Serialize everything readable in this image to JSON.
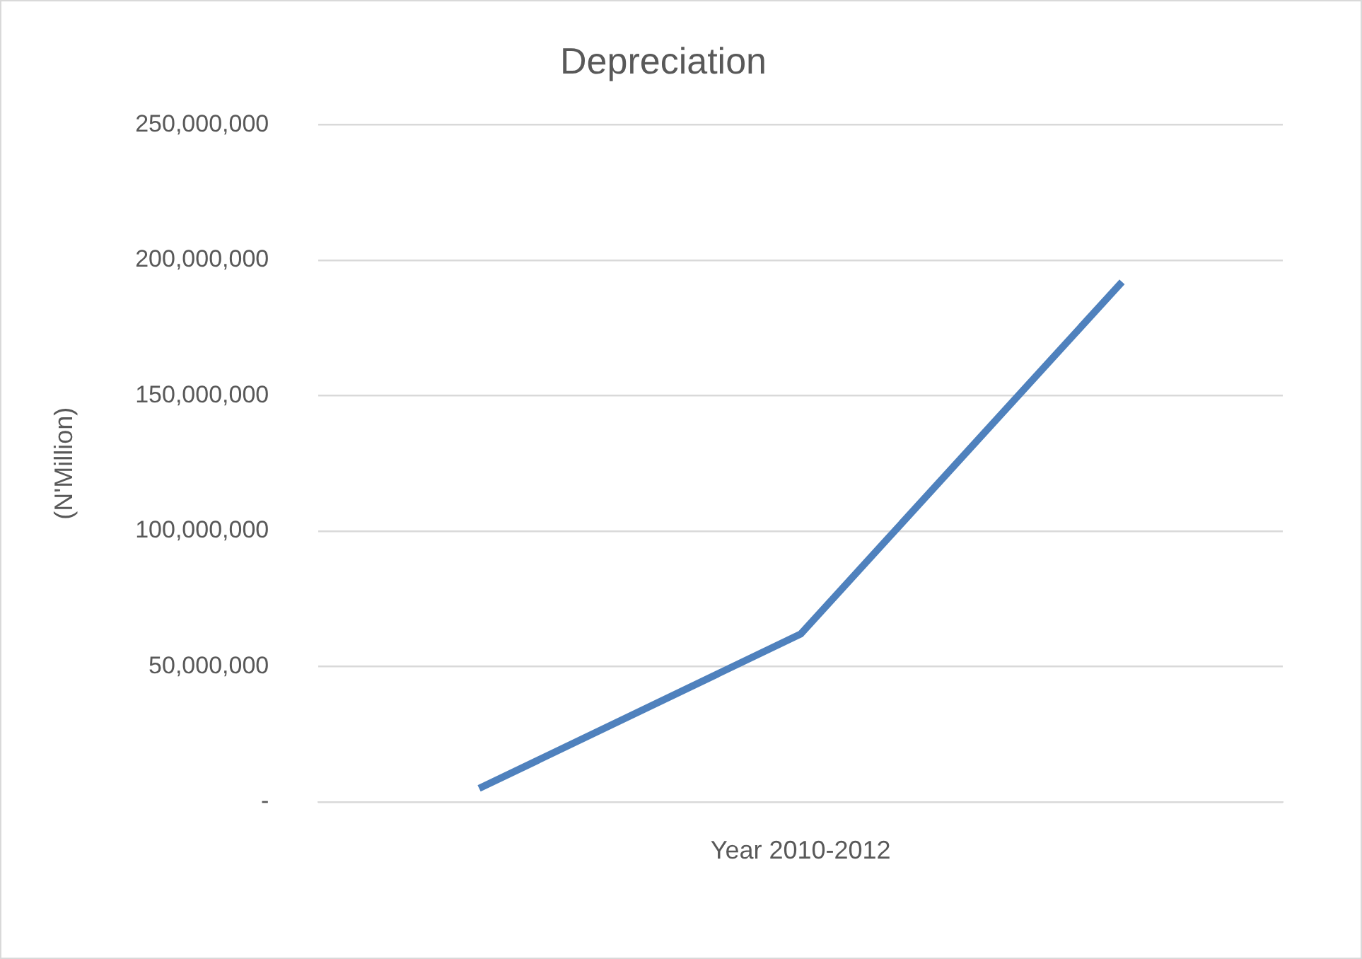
{
  "chart_data": {
    "type": "line",
    "title": "Depreciation",
    "xlabel": "Year 2010-2012",
    "ylabel": "(N'Million)",
    "categories": [
      null,
      null,
      null
    ],
    "series": [
      {
        "color": "#4f81bd",
        "values": [
          5000000,
          62000000,
          192000000
        ]
      }
    ],
    "ylim": [
      0,
      250000000
    ],
    "yticks": [
      {
        "value": 0,
        "label": "-"
      },
      {
        "value": 50000000,
        "label": "50,000,000"
      },
      {
        "value": 100000000,
        "label": "100,000,000"
      },
      {
        "value": 150000000,
        "label": "150,000,000"
      },
      {
        "value": 200000000,
        "label": "200,000,000"
      },
      {
        "value": 250000000,
        "label": "250,000,000"
      }
    ],
    "grid": "y",
    "legend": false,
    "marker": "none",
    "line_style": "solid"
  }
}
